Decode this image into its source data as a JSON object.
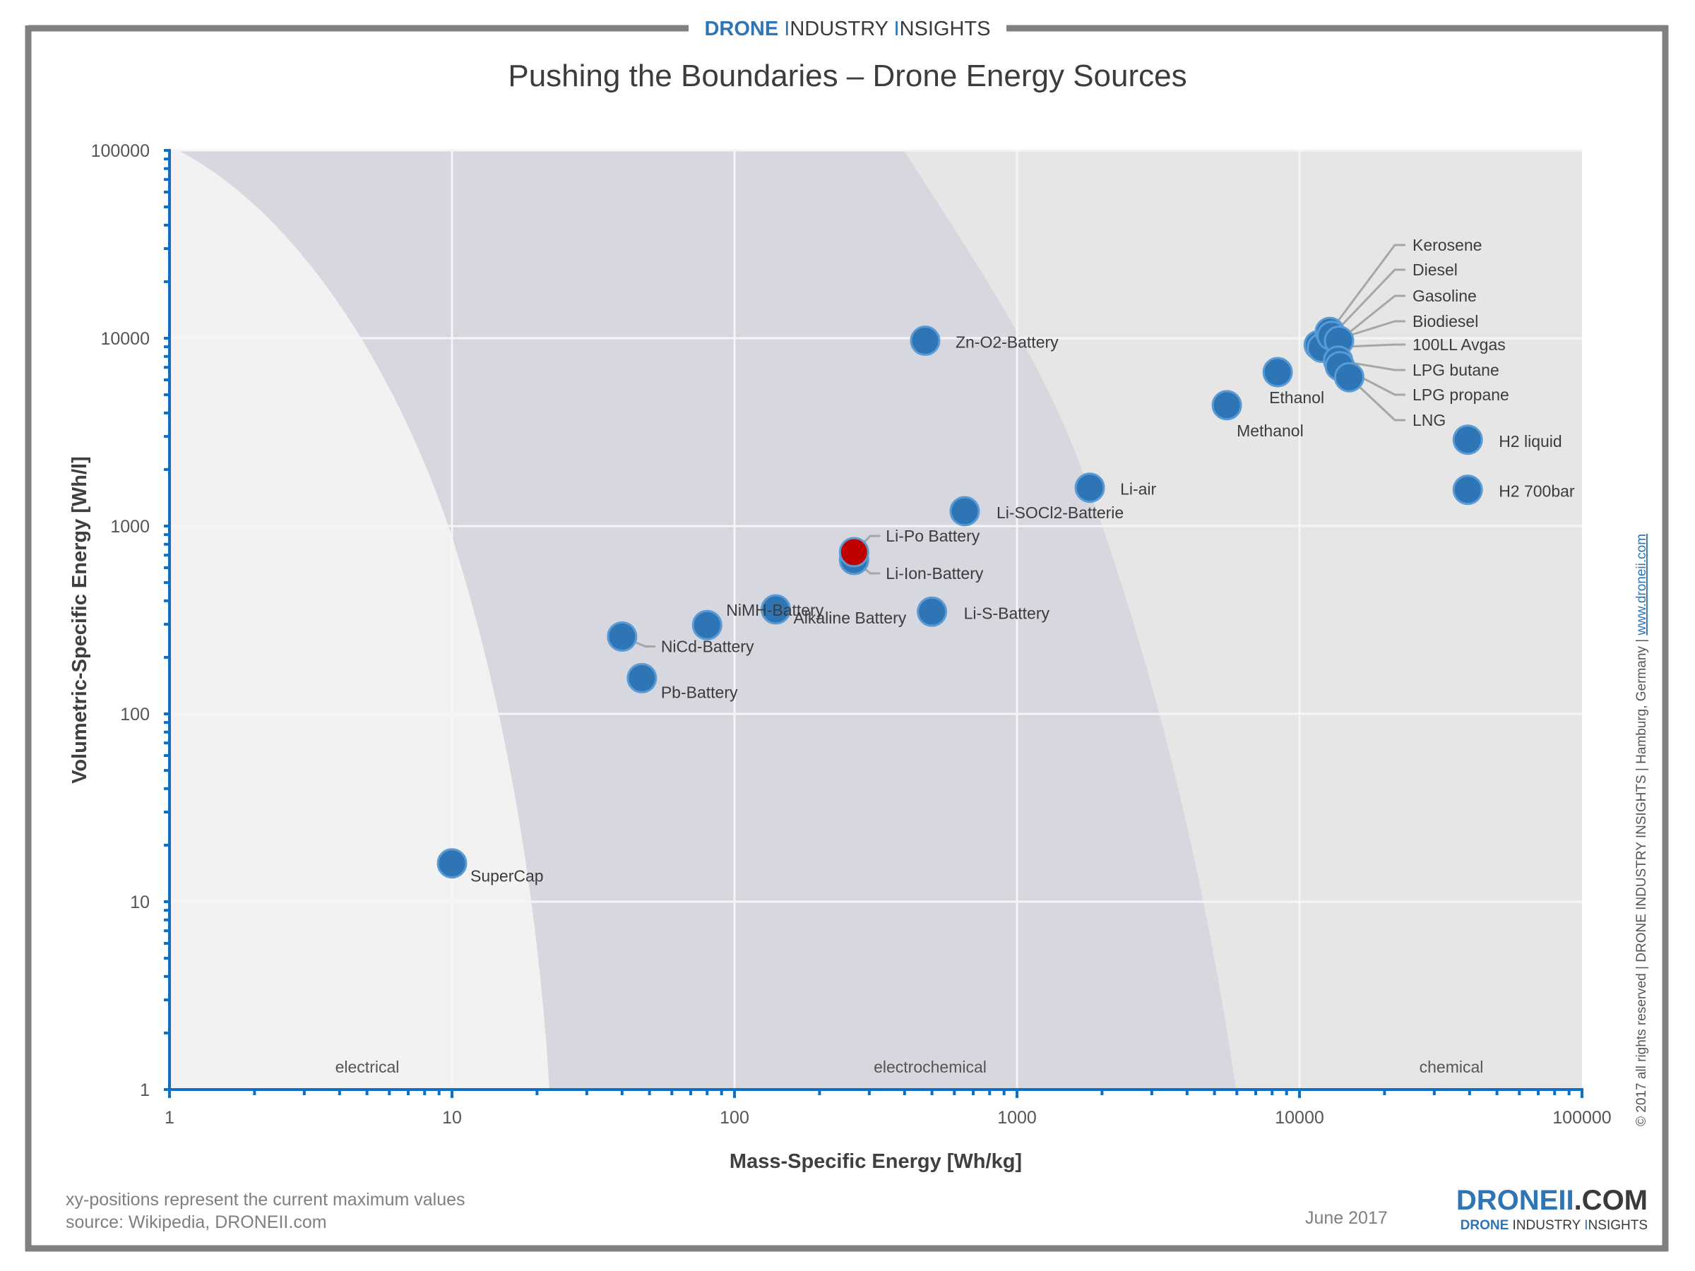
{
  "header": {
    "brand_part1": "DRONE ",
    "brand_part2": "I",
    "brand_part3": "NDUSTRY ",
    "brand_part4": "I",
    "brand_part5": "NSIGHTS"
  },
  "footer": {
    "note_line1": "xy-positions represent the current maximum values",
    "note_line2": "source: Wikipedia, DRONEII.com",
    "date": "June 2017",
    "logo_main_blue": "DRONEII",
    "logo_main_dark": ".COM",
    "logo_sub_blue1": "DRONE ",
    "logo_sub_dark1": "INDUSTRY ",
    "logo_sub_blue2": "I",
    "logo_sub_dark2": "NSIGHTS"
  },
  "side_note": {
    "text": "© 2017 all rights reserved | DRONE INDUSTRY INSIGHTS | Hamburg, Germany | ",
    "link": "www.droneii.com"
  },
  "colors": {
    "point": "#2e75b6",
    "point_stroke": "#5b9bd5",
    "highlight": "#c00000",
    "zone_electrical": "#f2f2f2",
    "zone_electrochemical": "#d6d7df",
    "zone_chemical": "#e6e6e6"
  },
  "chart_data": {
    "type": "scatter",
    "title": "Pushing the Boundaries – Drone Energy Sources",
    "xlabel": "Mass-Specific Energy [Wh/kg]",
    "ylabel": "Volumetric-Specific Energy [Wh/l]",
    "xscale": "log",
    "yscale": "log",
    "xlim": [
      1,
      100000
    ],
    "ylim": [
      1,
      100000
    ],
    "xticks": [
      "1",
      "10",
      "100",
      "1000",
      "10000",
      "100000"
    ],
    "yticks": [
      "1",
      "10",
      "100",
      "1000",
      "10000",
      "100000"
    ],
    "grid": true,
    "zones": [
      {
        "label": "electrical"
      },
      {
        "label": "electrochemical"
      },
      {
        "label": "chemical"
      }
    ],
    "points": [
      {
        "name": "SuperCap",
        "x": 10,
        "y": 16
      },
      {
        "name": "NiCd-Battery",
        "x": 40,
        "y": 258
      },
      {
        "name": "Pb-Battery",
        "x": 47,
        "y": 155
      },
      {
        "name": "NiMH-Battery",
        "x": 80,
        "y": 297
      },
      {
        "name": "Alkaline Battery",
        "x": 140,
        "y": 360
      },
      {
        "name": "Li-Ion-Battery",
        "x": 265,
        "y": 660
      },
      {
        "name": "Li-Po Battery",
        "x": 265,
        "y": 726,
        "highlight": true
      },
      {
        "name": "Li-S-Battery",
        "x": 500,
        "y": 350
      },
      {
        "name": "Zn-O2-Battery",
        "x": 473,
        "y": 9700
      },
      {
        "name": "Li-SOCl2-Batterie",
        "x": 653,
        "y": 1200
      },
      {
        "name": "Li-air",
        "x": 1810,
        "y": 1600
      },
      {
        "name": "Methanol",
        "x": 5530,
        "y": 4400
      },
      {
        "name": "Ethanol",
        "x": 8370,
        "y": 6600
      },
      {
        "name": "Biodiesel",
        "x": 11700,
        "y": 9200
      },
      {
        "name": "100LL Avgas",
        "x": 12000,
        "y": 8900
      },
      {
        "name": "Kerosene",
        "x": 12800,
        "y": 10800
      },
      {
        "name": "Diesel",
        "x": 13000,
        "y": 10300
      },
      {
        "name": "Gasoline",
        "x": 13800,
        "y": 9700
      },
      {
        "name": "LPG butane",
        "x": 13700,
        "y": 7600
      },
      {
        "name": "LPG propane",
        "x": 13900,
        "y": 7100
      },
      {
        "name": "LNG",
        "x": 15000,
        "y": 6200
      },
      {
        "name": "H2 liquid",
        "x": 39400,
        "y": 2880
      },
      {
        "name": "H2 700bar",
        "x": 39400,
        "y": 1560
      }
    ]
  }
}
